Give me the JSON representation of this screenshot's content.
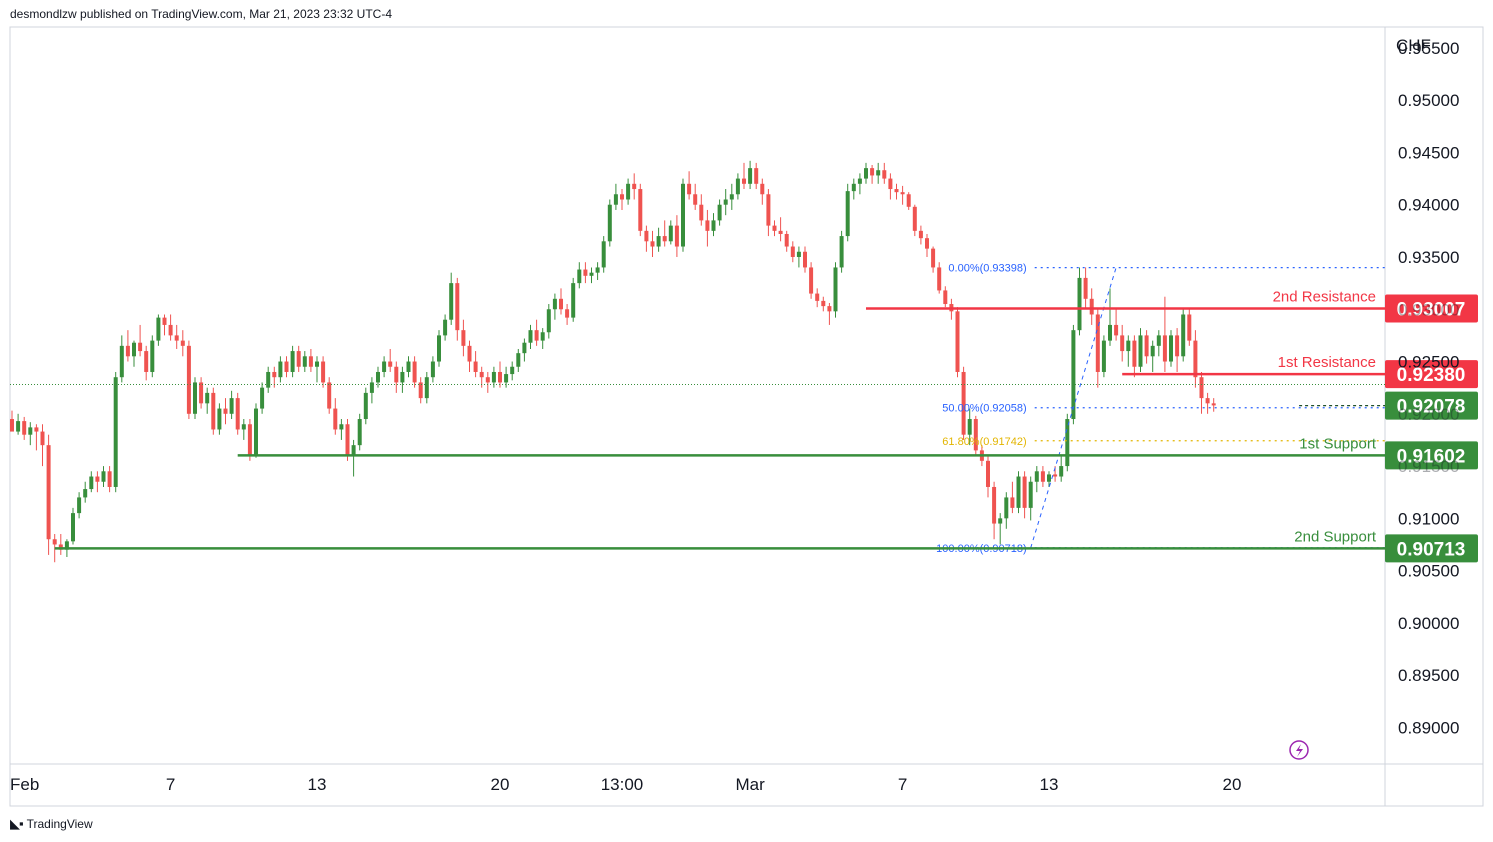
{
  "header": {
    "publisher": "desmondlzw published on TradingView.com, Mar 21, 2023 23:32 UTC-4"
  },
  "footer": {
    "brand": "TradingView",
    "logo_icon": "tradingview-logo-icon"
  },
  "colors": {
    "bull": "#388e3c",
    "bear": "#ef5350",
    "resistance": "#f23645",
    "support": "#388e3c",
    "fib": "#2962ff",
    "fib618": "#e3b500"
  },
  "chart_data": {
    "type": "candlestick",
    "currency": "CHF",
    "ylim": [
      0.8865,
      0.957
    ],
    "y_ticks": [
      "0.95500",
      "0.95000",
      "0.94500",
      "0.94000",
      "0.93500",
      "0.93000",
      "0.92500",
      "0.92000",
      "0.91500",
      "0.91000",
      "0.90500",
      "0.90000",
      "0.89500",
      "0.89000"
    ],
    "x_ticks": [
      {
        "label": "Feb",
        "bar": 0
      },
      {
        "label": "7",
        "bar": 26
      },
      {
        "label": "13",
        "bar": 50
      },
      {
        "label": "20",
        "bar": 80
      },
      {
        "label": "13:00",
        "bar": 100
      },
      {
        "label": "Mar",
        "bar": 121
      },
      {
        "label": "7",
        "bar": 146
      },
      {
        "label": "13",
        "bar": 170
      },
      {
        "label": "20",
        "bar": 200
      }
    ],
    "candles": [
      [
        0.9195,
        0.9203,
        0.9188,
        0.9183
      ],
      [
        0.9183,
        0.92,
        0.918,
        0.9193
      ],
      [
        0.9193,
        0.9197,
        0.9175,
        0.918
      ],
      [
        0.918,
        0.9192,
        0.917,
        0.9187
      ],
      [
        0.9187,
        0.919,
        0.9165,
        0.9183
      ],
      [
        0.9183,
        0.919,
        0.915,
        0.917
      ],
      [
        0.917,
        0.918,
        0.9065,
        0.908
      ],
      [
        0.908,
        0.9085,
        0.9058,
        0.9075
      ],
      [
        0.9075,
        0.9085,
        0.9065,
        0.907
      ],
      [
        0.907,
        0.908,
        0.9063,
        0.9078
      ],
      [
        0.9078,
        0.911,
        0.9075,
        0.9105
      ],
      [
        0.9105,
        0.9125,
        0.91,
        0.912
      ],
      [
        0.912,
        0.9135,
        0.9115,
        0.9128
      ],
      [
        0.9128,
        0.9145,
        0.9125,
        0.914
      ],
      [
        0.914,
        0.9145,
        0.9125,
        0.9135
      ],
      [
        0.9135,
        0.915,
        0.913,
        0.9145
      ],
      [
        0.9145,
        0.915,
        0.9125,
        0.913
      ],
      [
        0.913,
        0.924,
        0.9125,
        0.9235
      ],
      [
        0.9235,
        0.9275,
        0.923,
        0.9265
      ],
      [
        0.9265,
        0.928,
        0.925,
        0.9255
      ],
      [
        0.9255,
        0.927,
        0.9245,
        0.9268
      ],
      [
        0.9268,
        0.9285,
        0.9255,
        0.926
      ],
      [
        0.926,
        0.9265,
        0.9232,
        0.924
      ],
      [
        0.924,
        0.9275,
        0.9235,
        0.927
      ],
      [
        0.927,
        0.9295,
        0.9265,
        0.9292
      ],
      [
        0.9292,
        0.9295,
        0.9275,
        0.9285
      ],
      [
        0.9285,
        0.9295,
        0.927,
        0.9275
      ],
      [
        0.9275,
        0.9285,
        0.9262,
        0.927
      ],
      [
        0.927,
        0.928,
        0.9255,
        0.9265
      ],
      [
        0.9265,
        0.927,
        0.9195,
        0.92
      ],
      [
        0.92,
        0.9235,
        0.9195,
        0.923
      ],
      [
        0.923,
        0.9235,
        0.9205,
        0.921
      ],
      [
        0.921,
        0.9225,
        0.92,
        0.922
      ],
      [
        0.922,
        0.9225,
        0.918,
        0.9185
      ],
      [
        0.9185,
        0.921,
        0.918,
        0.9205
      ],
      [
        0.9205,
        0.9215,
        0.919,
        0.92
      ],
      [
        0.92,
        0.9222,
        0.9195,
        0.9215
      ],
      [
        0.9215,
        0.922,
        0.918,
        0.9185
      ],
      [
        0.9185,
        0.9195,
        0.9175,
        0.919
      ],
      [
        0.919,
        0.9195,
        0.9155,
        0.916
      ],
      [
        0.916,
        0.921,
        0.9158,
        0.9205
      ],
      [
        0.9205,
        0.923,
        0.92,
        0.9225
      ],
      [
        0.9225,
        0.9245,
        0.922,
        0.924
      ],
      [
        0.924,
        0.9245,
        0.9225,
        0.9235
      ],
      [
        0.9235,
        0.9255,
        0.923,
        0.925
      ],
      [
        0.925,
        0.9255,
        0.9235,
        0.924
      ],
      [
        0.924,
        0.9265,
        0.9235,
        0.926
      ],
      [
        0.926,
        0.9265,
        0.924,
        0.9245
      ],
      [
        0.9245,
        0.926,
        0.924,
        0.9255
      ],
      [
        0.9255,
        0.9262,
        0.924,
        0.9245
      ],
      [
        0.9245,
        0.9255,
        0.923,
        0.925
      ],
      [
        0.925,
        0.9255,
        0.9225,
        0.923
      ],
      [
        0.923,
        0.9235,
        0.92,
        0.9205
      ],
      [
        0.9205,
        0.9215,
        0.918,
        0.9185
      ],
      [
        0.9185,
        0.9195,
        0.9175,
        0.919
      ],
      [
        0.919,
        0.9195,
        0.9155,
        0.916
      ],
      [
        0.916,
        0.9175,
        0.914,
        0.917
      ],
      [
        0.917,
        0.92,
        0.9165,
        0.9195
      ],
      [
        0.9195,
        0.9225,
        0.919,
        0.922
      ],
      [
        0.922,
        0.9235,
        0.921,
        0.923
      ],
      [
        0.923,
        0.9245,
        0.9225,
        0.924
      ],
      [
        0.924,
        0.9255,
        0.9235,
        0.925
      ],
      [
        0.925,
        0.9262,
        0.924,
        0.9245
      ],
      [
        0.9245,
        0.925,
        0.922,
        0.923
      ],
      [
        0.923,
        0.9245,
        0.922,
        0.924
      ],
      [
        0.924,
        0.9255,
        0.9235,
        0.925
      ],
      [
        0.925,
        0.9255,
        0.9225,
        0.923
      ],
      [
        0.923,
        0.9235,
        0.921,
        0.9215
      ],
      [
        0.9215,
        0.924,
        0.921,
        0.9235
      ],
      [
        0.9235,
        0.9255,
        0.923,
        0.925
      ],
      [
        0.925,
        0.928,
        0.9245,
        0.9275
      ],
      [
        0.9275,
        0.9295,
        0.927,
        0.929
      ],
      [
        0.929,
        0.9335,
        0.9285,
        0.9325
      ],
      [
        0.9325,
        0.933,
        0.927,
        0.928
      ],
      [
        0.928,
        0.929,
        0.9255,
        0.9265
      ],
      [
        0.9265,
        0.927,
        0.924,
        0.925
      ],
      [
        0.925,
        0.926,
        0.9235,
        0.924
      ],
      [
        0.924,
        0.9245,
        0.9225,
        0.9235
      ],
      [
        0.9235,
        0.924,
        0.922,
        0.923
      ],
      [
        0.923,
        0.9245,
        0.9225,
        0.924
      ],
      [
        0.924,
        0.925,
        0.9225,
        0.923
      ],
      [
        0.923,
        0.9245,
        0.9225,
        0.9238
      ],
      [
        0.9238,
        0.925,
        0.9232,
        0.9245
      ],
      [
        0.9245,
        0.9262,
        0.924,
        0.9258
      ],
      [
        0.9258,
        0.9272,
        0.925,
        0.9268
      ],
      [
        0.9268,
        0.9285,
        0.9262,
        0.928
      ],
      [
        0.928,
        0.929,
        0.9265,
        0.927
      ],
      [
        0.927,
        0.9282,
        0.9262,
        0.9278
      ],
      [
        0.9278,
        0.9305,
        0.9272,
        0.93
      ],
      [
        0.93,
        0.9315,
        0.929,
        0.931
      ],
      [
        0.931,
        0.932,
        0.9295,
        0.93
      ],
      [
        0.93,
        0.9305,
        0.9285,
        0.9292
      ],
      [
        0.9292,
        0.933,
        0.9288,
        0.9325
      ],
      [
        0.9325,
        0.9345,
        0.932,
        0.9338
      ],
      [
        0.9338,
        0.9345,
        0.9325,
        0.9332
      ],
      [
        0.9332,
        0.934,
        0.9325,
        0.9335
      ],
      [
        0.9335,
        0.9345,
        0.9328,
        0.934
      ],
      [
        0.934,
        0.937,
        0.9335,
        0.9365
      ],
      [
        0.9365,
        0.9405,
        0.936,
        0.94
      ],
      [
        0.94,
        0.942,
        0.9395,
        0.941
      ],
      [
        0.941,
        0.9415,
        0.9395,
        0.9405
      ],
      [
        0.9405,
        0.9425,
        0.94,
        0.942
      ],
      [
        0.942,
        0.943,
        0.9405,
        0.9415
      ],
      [
        0.9415,
        0.942,
        0.937,
        0.9375
      ],
      [
        0.9375,
        0.938,
        0.9355,
        0.9365
      ],
      [
        0.9365,
        0.9375,
        0.935,
        0.936
      ],
      [
        0.936,
        0.9378,
        0.9355,
        0.937
      ],
      [
        0.937,
        0.9385,
        0.936,
        0.9365
      ],
      [
        0.9365,
        0.9385,
        0.9362,
        0.938
      ],
      [
        0.938,
        0.939,
        0.935,
        0.936
      ],
      [
        0.936,
        0.9425,
        0.9355,
        0.942
      ],
      [
        0.942,
        0.9432,
        0.9405,
        0.941
      ],
      [
        0.941,
        0.942,
        0.9395,
        0.94
      ],
      [
        0.94,
        0.941,
        0.938,
        0.9385
      ],
      [
        0.9385,
        0.9395,
        0.936,
        0.9375
      ],
      [
        0.9375,
        0.9392,
        0.937,
        0.9385
      ],
      [
        0.9385,
        0.9405,
        0.938,
        0.94
      ],
      [
        0.94,
        0.9415,
        0.939,
        0.9405
      ],
      [
        0.9405,
        0.942,
        0.9395,
        0.941
      ],
      [
        0.941,
        0.943,
        0.9405,
        0.9425
      ],
      [
        0.9425,
        0.944,
        0.9415,
        0.942
      ],
      [
        0.942,
        0.9442,
        0.9415,
        0.9435
      ],
      [
        0.9435,
        0.944,
        0.9415,
        0.942
      ],
      [
        0.942,
        0.9425,
        0.94,
        0.941
      ],
      [
        0.941,
        0.9415,
        0.937,
        0.938
      ],
      [
        0.938,
        0.9385,
        0.937,
        0.9375
      ],
      [
        0.9375,
        0.9388,
        0.9365,
        0.9372
      ],
      [
        0.9372,
        0.9375,
        0.9355,
        0.936
      ],
      [
        0.936,
        0.9365,
        0.9345,
        0.935
      ],
      [
        0.935,
        0.936,
        0.934,
        0.9355
      ],
      [
        0.9355,
        0.936,
        0.9335,
        0.934
      ],
      [
        0.934,
        0.9345,
        0.931,
        0.9315
      ],
      [
        0.9315,
        0.932,
        0.9302,
        0.9308
      ],
      [
        0.9308,
        0.9312,
        0.9298,
        0.9303
      ],
      [
        0.9303,
        0.9306,
        0.9285,
        0.9298
      ],
      [
        0.9298,
        0.9345,
        0.9292,
        0.934
      ],
      [
        0.934,
        0.9375,
        0.9335,
        0.937
      ],
      [
        0.937,
        0.942,
        0.9365,
        0.9413
      ],
      [
        0.9413,
        0.9425,
        0.9405,
        0.942
      ],
      [
        0.942,
        0.943,
        0.941,
        0.9425
      ],
      [
        0.9425,
        0.944,
        0.942,
        0.9435
      ],
      [
        0.9435,
        0.9438,
        0.942,
        0.9428
      ],
      [
        0.9428,
        0.944,
        0.942,
        0.9433
      ],
      [
        0.9433,
        0.944,
        0.942,
        0.9425
      ],
      [
        0.9425,
        0.943,
        0.9405,
        0.9415
      ],
      [
        0.9415,
        0.942,
        0.9405,
        0.9412
      ],
      [
        0.9412,
        0.9418,
        0.94,
        0.941
      ],
      [
        0.941,
        0.9412,
        0.9395,
        0.9398
      ],
      [
        0.9398,
        0.94,
        0.937,
        0.9375
      ],
      [
        0.9375,
        0.938,
        0.9362,
        0.9368
      ],
      [
        0.9368,
        0.9372,
        0.935,
        0.9358
      ],
      [
        0.9358,
        0.936,
        0.9335,
        0.934
      ],
      [
        0.934,
        0.9345,
        0.9315,
        0.9318
      ],
      [
        0.9318,
        0.9322,
        0.9302,
        0.9305
      ],
      [
        0.9305,
        0.931,
        0.929,
        0.9298
      ],
      [
        0.9298,
        0.9302,
        0.9235,
        0.924
      ],
      [
        0.924,
        0.9245,
        0.9175,
        0.918
      ],
      [
        0.918,
        0.9205,
        0.917,
        0.9195
      ],
      [
        0.9195,
        0.9198,
        0.916,
        0.9165
      ],
      [
        0.9165,
        0.917,
        0.915,
        0.9155
      ],
      [
        0.9155,
        0.916,
        0.912,
        0.913
      ],
      [
        0.913,
        0.9135,
        0.908,
        0.9095
      ],
      [
        0.9095,
        0.9105,
        0.9075,
        0.91
      ],
      [
        0.91,
        0.9125,
        0.909,
        0.912
      ],
      [
        0.912,
        0.9135,
        0.9105,
        0.911
      ],
      [
        0.911,
        0.9145,
        0.9105,
        0.914
      ],
      [
        0.914,
        0.9145,
        0.91,
        0.911
      ],
      [
        0.911,
        0.914,
        0.9098,
        0.9135
      ],
      [
        0.9135,
        0.915,
        0.9125,
        0.9145
      ],
      [
        0.9145,
        0.915,
        0.913,
        0.9135
      ],
      [
        0.9135,
        0.9145,
        0.913,
        0.9142
      ],
      [
        0.9142,
        0.915,
        0.9135,
        0.914
      ],
      [
        0.914,
        0.916,
        0.9135,
        0.915
      ],
      [
        0.915,
        0.92,
        0.9145,
        0.9195
      ],
      [
        0.9195,
        0.9285,
        0.919,
        0.928
      ],
      [
        0.928,
        0.934,
        0.9275,
        0.933
      ],
      [
        0.933,
        0.934,
        0.93,
        0.931
      ],
      [
        0.931,
        0.932,
        0.9285,
        0.9295
      ],
      [
        0.9295,
        0.93,
        0.9225,
        0.924
      ],
      [
        0.924,
        0.9275,
        0.9235,
        0.927
      ],
      [
        0.927,
        0.932,
        0.9265,
        0.9285
      ],
      [
        0.9285,
        0.93,
        0.927,
        0.9275
      ],
      [
        0.9275,
        0.9285,
        0.925,
        0.926
      ],
      [
        0.926,
        0.9275,
        0.9245,
        0.927
      ],
      [
        0.927,
        0.9275,
        0.9235,
        0.9245
      ],
      [
        0.9245,
        0.9282,
        0.924,
        0.9275
      ],
      [
        0.9275,
        0.928,
        0.9248,
        0.9255
      ],
      [
        0.9255,
        0.927,
        0.924,
        0.9265
      ],
      [
        0.9265,
        0.928,
        0.9255,
        0.9275
      ],
      [
        0.9275,
        0.9312,
        0.924,
        0.925
      ],
      [
        0.925,
        0.928,
        0.9245,
        0.9275
      ],
      [
        0.9275,
        0.9282,
        0.924,
        0.9255
      ],
      [
        0.9255,
        0.93,
        0.925,
        0.9295
      ],
      [
        0.9295,
        0.93,
        0.9265,
        0.927
      ],
      [
        0.927,
        0.928,
        0.9225,
        0.9235
      ],
      [
        0.9235,
        0.924,
        0.92,
        0.9215
      ],
      [
        0.9215,
        0.922,
        0.92,
        0.921
      ],
      [
        0.921,
        0.9215,
        0.9202,
        0.9208
      ]
    ],
    "levels": [
      {
        "label": "2nd Resistance",
        "value": "0.93007",
        "price": 0.93007,
        "kind": "resistance",
        "from_bar": 140
      },
      {
        "label": "1st Resistance",
        "value": "0.92380",
        "price": 0.9238,
        "kind": "resistance",
        "from_bar": 182
      },
      {
        "label": "1st Support",
        "value": "0.91602",
        "price": 0.91602,
        "kind": "support",
        "from_bar": 37
      },
      {
        "label": "2nd Support",
        "value": "0.90713",
        "price": 0.90713,
        "kind": "support",
        "from_bar": 7
      }
    ],
    "current_price": {
      "value": "0.92078",
      "price": 0.92078
    },
    "fibonacci": [
      {
        "label": "0.00%(0.93398)",
        "price": 0.93398
      },
      {
        "label": "50.00%(0.92058)",
        "price": 0.92058
      },
      {
        "label": "61.80%(0.91742)",
        "price": 0.91742
      },
      {
        "label": "100.00%(0.90718)",
        "price": 0.90718
      }
    ],
    "fib_swing": {
      "from_bar": 167,
      "from_price": 0.90718,
      "to_bar": 181,
      "to_price": 0.93398
    },
    "icons": [
      "lightning-icon"
    ]
  }
}
